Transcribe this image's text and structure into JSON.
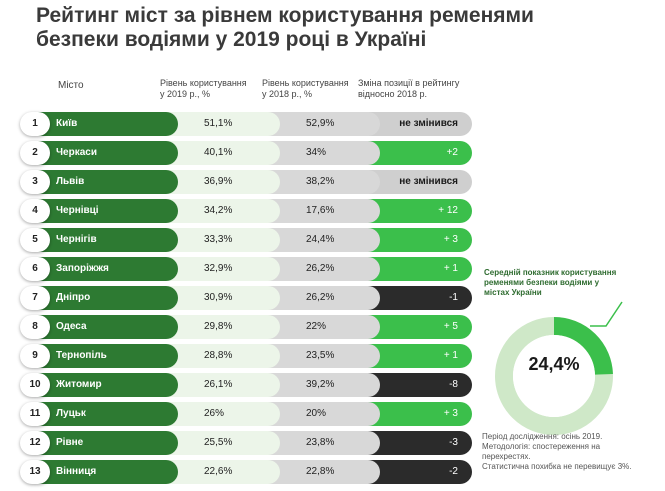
{
  "title_line1": "Рейтинг міст за рівнем користування ременями",
  "title_line2": "безпеки водіями у 2019 році в Україні",
  "headers": {
    "city": "Місто",
    "y2019_l1": "Рівень користування",
    "y2019_l2": "у 2019 р., %",
    "y2018_l1": "Рівень користування",
    "y2018_l2": "у 2018 р., %",
    "change_l1": "Зміна позиції в рейтингу",
    "change_l2": "відносно 2018 р."
  },
  "colors": {
    "city_green": "#2d7a32",
    "up_green": "#3bbf4b",
    "down_dark": "#2b2b2b",
    "unchanged_grey": "#cfcfcf",
    "light_green": "#ecf5e9"
  },
  "rows": [
    {
      "rank": "1",
      "city": "Київ",
      "v2019": "51,1%",
      "v2018": "52,9%",
      "change": "не змінився",
      "dir": "same"
    },
    {
      "rank": "2",
      "city": "Черкаси",
      "v2019": "40,1%",
      "v2018": "34%",
      "change": "+2",
      "dir": "up"
    },
    {
      "rank": "3",
      "city": "Львів",
      "v2019": "36,9%",
      "v2018": "38,2%",
      "change": "не змінився",
      "dir": "same"
    },
    {
      "rank": "4",
      "city": "Чернівці",
      "v2019": "34,2%",
      "v2018": "17,6%",
      "change": "+ 12",
      "dir": "up"
    },
    {
      "rank": "5",
      "city": "Чернігів",
      "v2019": "33,3%",
      "v2018": "24,4%",
      "change": "+ 3",
      "dir": "up"
    },
    {
      "rank": "6",
      "city": "Запоріжжя",
      "v2019": "32,9%",
      "v2018": "26,2%",
      "change": "+ 1",
      "dir": "up"
    },
    {
      "rank": "7",
      "city": "Дніпро",
      "v2019": "30,9%",
      "v2018": "26,2%",
      "change": "-1",
      "dir": "down"
    },
    {
      "rank": "8",
      "city": "Одеса",
      "v2019": "29,8%",
      "v2018": "22%",
      "change": "+ 5",
      "dir": "up"
    },
    {
      "rank": "9",
      "city": "Тернопіль",
      "v2019": "28,8%",
      "v2018": "23,5%",
      "change": "+ 1",
      "dir": "up"
    },
    {
      "rank": "10",
      "city": "Житомир",
      "v2019": "26,1%",
      "v2018": "39,2%",
      "change": "-8",
      "dir": "down"
    },
    {
      "rank": "11",
      "city": "Луцьк",
      "v2019": "26%",
      "v2018": "20%",
      "change": "+ 3",
      "dir": "up"
    },
    {
      "rank": "12",
      "city": "Рівне",
      "v2019": "25,5%",
      "v2018": "23,8%",
      "change": "-3",
      "dir": "down"
    },
    {
      "rank": "13",
      "city": "Вінниця",
      "v2019": "22,6%",
      "v2018": "22,8%",
      "change": "-2",
      "dir": "down"
    }
  ],
  "average": {
    "title_l1": "Середній показник користування",
    "title_l2": "ременями безпеки водіями у",
    "title_l3": "містах України",
    "value_label": "24,4%",
    "value": 24.4
  },
  "notes": {
    "l1": "Період дослідження: осінь 2019.",
    "l2": "Методологія: спостереження на",
    "l3": "перехрестях.",
    "l4": "Статистична похибка не перевищує 3%."
  },
  "chart_data": {
    "type": "table",
    "columns": [
      "Місто",
      "Рівень користування у 2019 р., %",
      "Рівень користування у 2018 р., %",
      "Зміна позиції в рейтингу відносно 2018 р."
    ],
    "rows": [
      [
        "Київ",
        51.1,
        52.9,
        "не змінився"
      ],
      [
        "Черкаси",
        40.1,
        34,
        "+2"
      ],
      [
        "Львів",
        36.9,
        38.2,
        "не змінився"
      ],
      [
        "Чернівці",
        34.2,
        17.6,
        "+12"
      ],
      [
        "Чернігів",
        33.3,
        24.4,
        "+3"
      ],
      [
        "Запоріжжя",
        32.9,
        26.2,
        "+1"
      ],
      [
        "Дніпро",
        30.9,
        26.2,
        "-1"
      ],
      [
        "Одеса",
        29.8,
        22,
        "+5"
      ],
      [
        "Тернопіль",
        28.8,
        23.5,
        "+1"
      ],
      [
        "Житомир",
        26.1,
        39.2,
        "-8"
      ],
      [
        "Луцьк",
        26,
        20,
        "+3"
      ],
      [
        "Рівне",
        25.5,
        23.8,
        "-3"
      ],
      [
        "Вінниця",
        22.6,
        22.8,
        "-2"
      ]
    ],
    "average_percent": 24.4
  }
}
